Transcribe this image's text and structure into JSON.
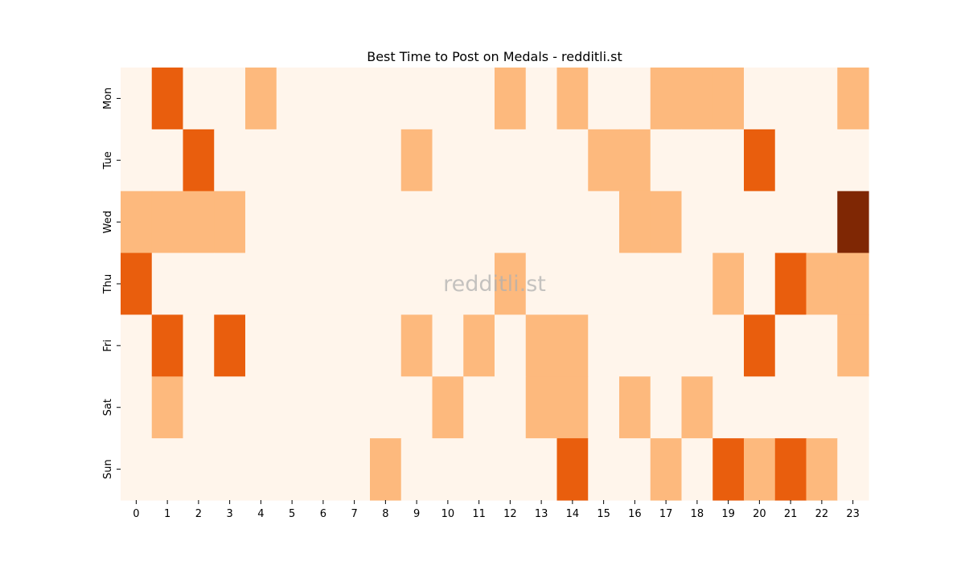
{
  "chart_data": {
    "type": "heatmap",
    "title": "Best Time to Post on Medals - redditli.st",
    "watermark": "redditli.st",
    "xlabel": "",
    "ylabel": "",
    "x_labels": [
      "0",
      "1",
      "2",
      "3",
      "4",
      "5",
      "6",
      "7",
      "8",
      "9",
      "10",
      "11",
      "12",
      "13",
      "14",
      "15",
      "16",
      "17",
      "18",
      "19",
      "20",
      "21",
      "22",
      "23"
    ],
    "y_labels": [
      "Mon",
      "Tue",
      "Wed",
      "Thu",
      "Fri",
      "Sat",
      "Sun"
    ],
    "values": [
      [
        0,
        2,
        0,
        0,
        1,
        0,
        0,
        0,
        0,
        0,
        0,
        0,
        1,
        0,
        1,
        0,
        0,
        1,
        1,
        1,
        0,
        0,
        0,
        1
      ],
      [
        0,
        0,
        2,
        0,
        0,
        0,
        0,
        0,
        0,
        1,
        0,
        0,
        0,
        0,
        0,
        1,
        1,
        0,
        0,
        0,
        2,
        0,
        0,
        0
      ],
      [
        1,
        1,
        1,
        1,
        0,
        0,
        0,
        0,
        0,
        0,
        0,
        0,
        0,
        0,
        0,
        0,
        1,
        1,
        0,
        0,
        0,
        0,
        0,
        4
      ],
      [
        2,
        0,
        0,
        0,
        0,
        0,
        0,
        0,
        0,
        0,
        0,
        0,
        1,
        0,
        0,
        0,
        0,
        0,
        0,
        1,
        0,
        2,
        1,
        1
      ],
      [
        0,
        2,
        0,
        2,
        0,
        0,
        0,
        0,
        0,
        1,
        0,
        1,
        0,
        1,
        1,
        0,
        0,
        0,
        0,
        0,
        2,
        0,
        0,
        1
      ],
      [
        0,
        1,
        0,
        0,
        0,
        0,
        0,
        0,
        0,
        0,
        1,
        0,
        0,
        1,
        1,
        0,
        1,
        0,
        1,
        0,
        0,
        0,
        0,
        0
      ],
      [
        0,
        0,
        0,
        0,
        0,
        0,
        0,
        0,
        1,
        0,
        0,
        0,
        0,
        0,
        2,
        0,
        0,
        1,
        0,
        2,
        1,
        2,
        1,
        0
      ]
    ],
    "colormap": {
      "0": "#fff5eb",
      "1": "#fdb97d",
      "2": "#e95e0d",
      "4": "#7f2704"
    },
    "grid": false,
    "legend": "none"
  }
}
